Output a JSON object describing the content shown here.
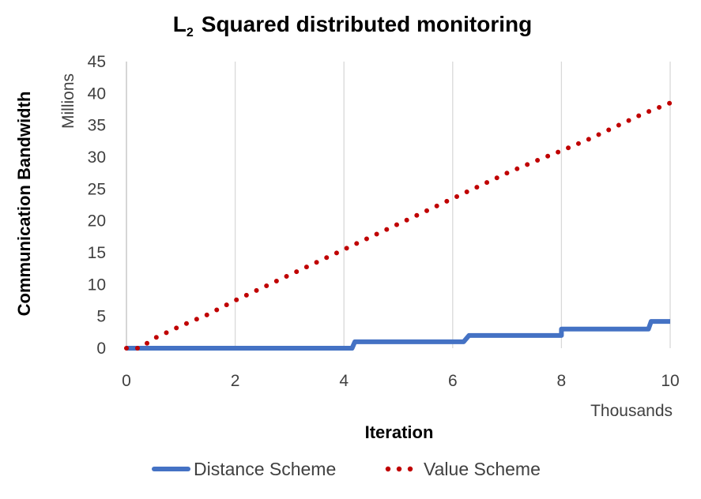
{
  "chart_data": {
    "type": "line",
    "title_main": "L",
    "title_sub": "2",
    "title_rest": "Squared distributed monitoring",
    "xlabel": "Iteration",
    "ylabel": "Communication Bandwidth",
    "x_unit": "Thousands",
    "y_unit": "Millions",
    "xlim": [
      0,
      10
    ],
    "ylim": [
      0,
      45
    ],
    "x_ticks": [
      "0",
      "2",
      "4",
      "6",
      "8",
      "10"
    ],
    "y_ticks": [
      "0",
      "5",
      "10",
      "15",
      "20",
      "25",
      "30",
      "35",
      "40",
      "45"
    ],
    "legend_position": "bottom",
    "grid": "vertical",
    "series": [
      {
        "name": "Distance Scheme",
        "style": "solid",
        "color": "#4472C4",
        "x": [
          0,
          4.15,
          4.2,
          6.2,
          6.3,
          8.0,
          8.0,
          9.6,
          9.65,
          10
        ],
        "y": [
          0,
          0,
          1,
          1,
          2,
          2,
          3,
          3,
          4.2,
          4.2
        ]
      },
      {
        "name": "Value Scheme",
        "style": "dotted",
        "color": "#C00000",
        "x": [
          0,
          0.25,
          0.5,
          1,
          1.5,
          2,
          2.5,
          3,
          3.5,
          4,
          4.5,
          5,
          5.5,
          6,
          6.5,
          7,
          7.5,
          8,
          8.5,
          9,
          9.5,
          10
        ],
        "y": [
          0,
          0,
          1.5,
          3.5,
          5.3,
          7.5,
          9.5,
          11.5,
          13.5,
          15.5,
          17.5,
          19.5,
          21.5,
          23.5,
          25.5,
          27.5,
          29.3,
          31,
          32.8,
          34.8,
          36.8,
          38.5
        ]
      }
    ]
  }
}
